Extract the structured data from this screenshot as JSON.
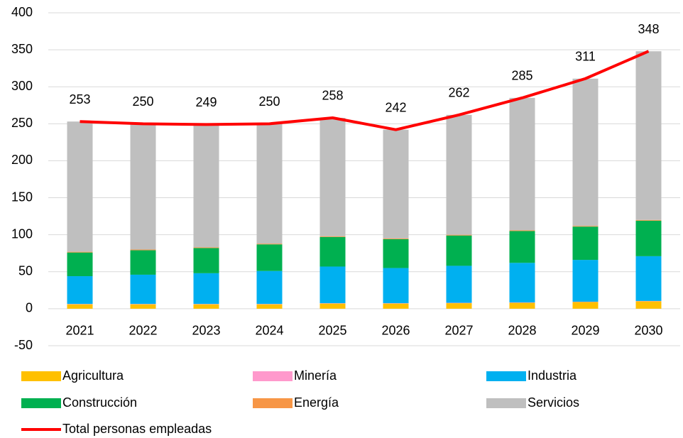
{
  "chart_data": {
    "type": "bar",
    "stacked": true,
    "categories": [
      "2021",
      "2022",
      "2023",
      "2024",
      "2025",
      "2026",
      "2027",
      "2028",
      "2029",
      "2030"
    ],
    "ylim": [
      -50,
      400
    ],
    "yticks": [
      -50,
      0,
      50,
      100,
      150,
      200,
      250,
      300,
      350,
      400
    ],
    "grid": true,
    "series": [
      {
        "name": "Agricultura",
        "color": "#ffc000",
        "values": [
          6,
          6,
          6,
          6,
          7,
          7,
          7.5,
          8,
          9,
          10
        ]
      },
      {
        "name": "Minería",
        "color": "#ff99cc",
        "values": [
          0.5,
          0.5,
          0.5,
          0.5,
          0.5,
          0.5,
          0.5,
          0.5,
          0.5,
          0.5
        ]
      },
      {
        "name": "Industria",
        "color": "#00b0f0",
        "values": [
          37.5,
          39.5,
          41.5,
          44.5,
          49.5,
          47.5,
          50,
          53.5,
          56.5,
          60.5
        ]
      },
      {
        "name": "Construcción",
        "color": "#00b050",
        "values": [
          32,
          33,
          34,
          36,
          40,
          39,
          41,
          43,
          45,
          48
        ]
      },
      {
        "name": "Energía",
        "color": "#f79646",
        "values": [
          1,
          1,
          1,
          1,
          1,
          1,
          1,
          1,
          1,
          1
        ]
      },
      {
        "name": "Servicios",
        "color": "#bfbfbf",
        "values": [
          176,
          170,
          166,
          162,
          160,
          147,
          162,
          179,
          199,
          228
        ]
      },
      {
        "name": "Total personas empleadas",
        "type": "line",
        "color": "#ff0000",
        "values": [
          253,
          250,
          249,
          250,
          258,
          242,
          262,
          285,
          311,
          348
        ]
      }
    ]
  }
}
